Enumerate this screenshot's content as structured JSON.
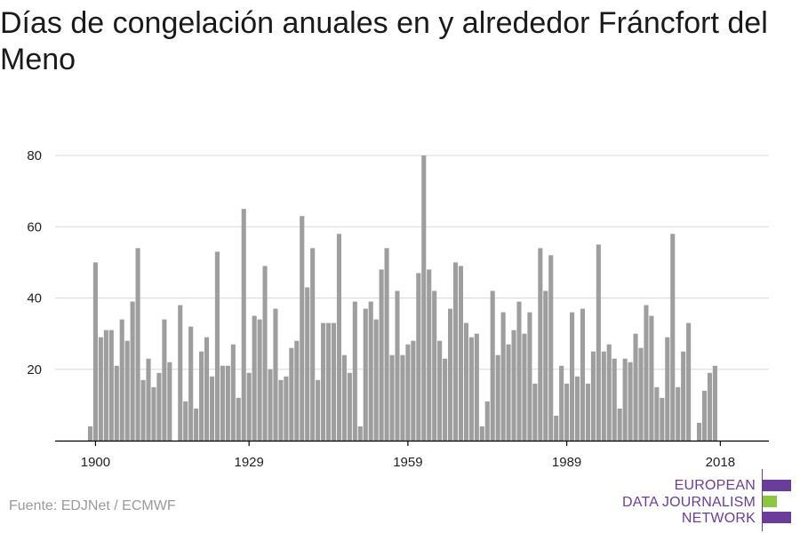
{
  "title": "Días de congelación anuales en y alrededor Fráncfort del Meno",
  "source": "Fuente: EDJNet / ECMWF",
  "logo": {
    "lines": [
      "EUROPEAN",
      "DATA JOURNALISM",
      "NETWORK"
    ]
  },
  "colors": {
    "bar": "#9e9e9e",
    "grid": "#d9d9d9",
    "axis": "#000000",
    "logo_purple": "#6a3d9a",
    "logo_green": "#8bc83f"
  },
  "chart_data": {
    "type": "bar",
    "xlabel": "",
    "ylabel": "",
    "ylim": [
      0,
      80
    ],
    "yticks": [
      20,
      40,
      60,
      80
    ],
    "xticks": [
      1900,
      1929,
      1959,
      1989,
      2018
    ],
    "grid": true,
    "x": [
      1899,
      1900,
      1901,
      1902,
      1903,
      1904,
      1905,
      1906,
      1907,
      1908,
      1909,
      1910,
      1911,
      1912,
      1913,
      1914,
      1915,
      1916,
      1917,
      1918,
      1919,
      1920,
      1921,
      1922,
      1923,
      1924,
      1925,
      1926,
      1927,
      1928,
      1929,
      1930,
      1931,
      1932,
      1933,
      1934,
      1935,
      1936,
      1937,
      1938,
      1939,
      1940,
      1941,
      1942,
      1943,
      1944,
      1945,
      1946,
      1947,
      1948,
      1949,
      1950,
      1951,
      1952,
      1953,
      1954,
      1955,
      1956,
      1957,
      1958,
      1959,
      1960,
      1961,
      1962,
      1963,
      1964,
      1965,
      1966,
      1967,
      1968,
      1969,
      1970,
      1971,
      1972,
      1973,
      1974,
      1975,
      1976,
      1977,
      1978,
      1979,
      1980,
      1981,
      1982,
      1983,
      1984,
      1985,
      1986,
      1987,
      1988,
      1989,
      1990,
      1991,
      1992,
      1993,
      1994,
      1995,
      1996,
      1997,
      1998,
      1999,
      2000,
      2001,
      2002,
      2003,
      2004,
      2005,
      2006,
      2007,
      2008,
      2009,
      2010,
      2011,
      2012,
      2013,
      2014,
      2015,
      2016,
      2017,
      2018
    ],
    "values": [
      4,
      50,
      29,
      31,
      31,
      21,
      34,
      28,
      39,
      54,
      17,
      23,
      15,
      19,
      34,
      22,
      null,
      38,
      11,
      32,
      9,
      25,
      29,
      18,
      53,
      21,
      21,
      27,
      12,
      65,
      19,
      35,
      34,
      49,
      20,
      37,
      17,
      18,
      26,
      28,
      63,
      43,
      54,
      17,
      33,
      33,
      33,
      58,
      24,
      19,
      39,
      4,
      37,
      39,
      34,
      48,
      54,
      24,
      42,
      24,
      27,
      28,
      47,
      80,
      48,
      42,
      28,
      23,
      37,
      50,
      49,
      33,
      29,
      30,
      4,
      11,
      42,
      24,
      36,
      27,
      31,
      39,
      30,
      36,
      16,
      54,
      42,
      52,
      7,
      21,
      16,
      36,
      18,
      37,
      16,
      25,
      55,
      25,
      27,
      23,
      9,
      23,
      22,
      30,
      26,
      38,
      35,
      15,
      12,
      29,
      58,
      15,
      25,
      33,
      null,
      5,
      14,
      19,
      21,
      null
    ]
  }
}
